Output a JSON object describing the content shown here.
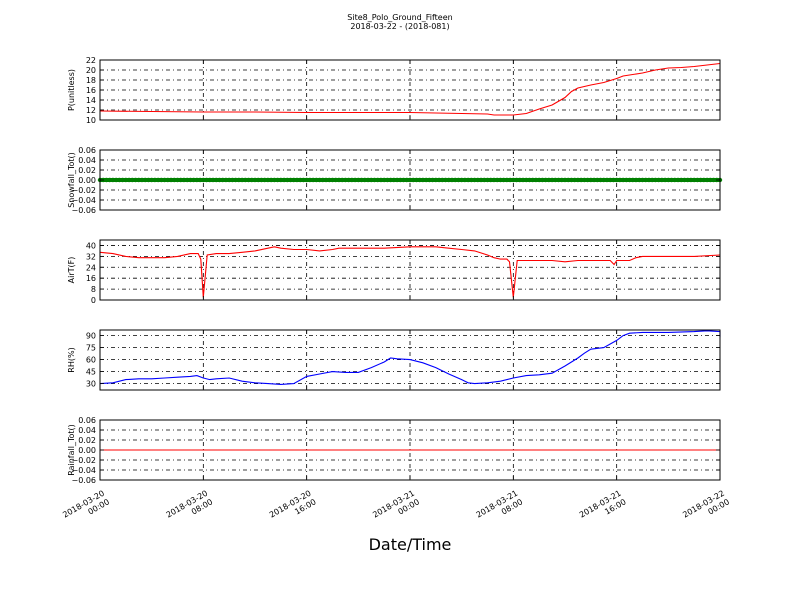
{
  "title": "Site8_Polo_Ground_Fifteen",
  "subtitle": "2018-03-22 - (2018-081)",
  "xlabel": "Date/Time",
  "x_ticks": [
    {
      "value": 0,
      "line1": "2018-03-20",
      "line2": "00:00"
    },
    {
      "value": 8,
      "line1": "2018-03-20",
      "line2": "08:00"
    },
    {
      "value": 16,
      "line1": "2018-03-20",
      "line2": "16:00"
    },
    {
      "value": 24,
      "line1": "2018-03-21",
      "line2": "00:00"
    },
    {
      "value": 32,
      "line1": "2018-03-21",
      "line2": "08:00"
    },
    {
      "value": 40,
      "line1": "2018-03-21",
      "line2": "16:00"
    },
    {
      "value": 48,
      "line1": "2018-03-22",
      "line2": "00:00"
    }
  ],
  "chart_data": [
    {
      "type": "line",
      "ylabel": "P(unitless)",
      "color": "#ff0000",
      "xlim": [
        0,
        48
      ],
      "ylim": [
        10,
        22
      ],
      "yticks": [
        10,
        12,
        14,
        16,
        18,
        20,
        22
      ],
      "tick_labels": [
        "10",
        "12",
        "14",
        "16",
        "18",
        "20",
        "22"
      ],
      "grid": true,
      "points": [
        [
          0,
          11.8
        ],
        [
          4,
          11.7
        ],
        [
          8,
          11.6
        ],
        [
          12,
          11.6
        ],
        [
          16,
          11.5
        ],
        [
          20,
          11.5
        ],
        [
          24,
          11.5
        ],
        [
          28,
          11.3
        ],
        [
          30,
          11.2
        ],
        [
          30.5,
          11.0
        ],
        [
          32,
          11.0
        ],
        [
          33,
          11.3
        ],
        [
          34,
          12.2
        ],
        [
          35,
          13.0
        ],
        [
          36,
          14.5
        ],
        [
          36.5,
          15.7
        ],
        [
          37,
          16.4
        ],
        [
          38,
          17.0
        ],
        [
          39,
          17.5
        ],
        [
          40,
          18.3
        ],
        [
          40.5,
          18.8
        ],
        [
          42,
          19.4
        ],
        [
          43,
          20.0
        ],
        [
          44,
          20.4
        ],
        [
          45,
          20.5
        ],
        [
          46,
          20.7
        ],
        [
          47,
          21.0
        ],
        [
          48,
          21.3
        ]
      ]
    },
    {
      "type": "line",
      "ylabel": "Snowfall_Tot()",
      "color": "#008000",
      "xlim": [
        0,
        48
      ],
      "ylim": [
        -0.06,
        0.06
      ],
      "yticks": [
        -0.06,
        -0.04,
        -0.02,
        0.0,
        0.02,
        0.04,
        0.06
      ],
      "tick_labels": [
        "−0.06",
        "−0.04",
        "−0.02",
        "0.00",
        "0.02",
        "0.04",
        "0.06"
      ],
      "grid": true,
      "marker": "dot",
      "points": [
        [
          0,
          0
        ],
        [
          48,
          0
        ]
      ]
    },
    {
      "type": "line",
      "ylabel": "AirT(F)",
      "color": "#ff0000",
      "xlim": [
        0,
        48
      ],
      "ylim": [
        0,
        44
      ],
      "yticks": [
        0,
        8,
        16,
        24,
        32,
        40
      ],
      "tick_labels": [
        "0",
        "8",
        "16",
        "24",
        "32",
        "40"
      ],
      "grid": true,
      "points": [
        [
          0,
          35
        ],
        [
          1,
          34
        ],
        [
          2,
          32
        ],
        [
          3,
          31
        ],
        [
          4,
          31
        ],
        [
          5,
          31
        ],
        [
          6,
          32
        ],
        [
          7,
          34
        ],
        [
          7.6,
          34
        ],
        [
          7.8,
          30
        ],
        [
          8,
          2
        ],
        [
          8.3,
          33
        ],
        [
          9,
          34
        ],
        [
          10,
          34
        ],
        [
          11,
          35
        ],
        [
          12,
          36
        ],
        [
          13,
          38
        ],
        [
          13.5,
          39
        ],
        [
          14,
          38
        ],
        [
          15,
          37
        ],
        [
          16,
          37
        ],
        [
          17,
          36
        ],
        [
          18,
          37
        ],
        [
          18.5,
          38
        ],
        [
          20,
          38
        ],
        [
          22,
          38
        ],
        [
          24,
          39
        ],
        [
          26,
          39
        ],
        [
          27,
          38
        ],
        [
          28,
          37
        ],
        [
          29,
          36
        ],
        [
          30,
          33
        ],
        [
          30.5,
          31
        ],
        [
          31,
          30
        ],
        [
          31.5,
          30
        ],
        [
          31.7,
          28
        ],
        [
          32,
          2
        ],
        [
          32.3,
          29
        ],
        [
          33,
          29
        ],
        [
          34,
          29
        ],
        [
          35,
          29
        ],
        [
          36,
          28
        ],
        [
          37,
          29
        ],
        [
          38,
          29
        ],
        [
          39,
          29
        ],
        [
          39.5,
          29
        ],
        [
          39.8,
          26
        ],
        [
          40,
          29
        ],
        [
          41,
          29
        ],
        [
          41.5,
          31
        ],
        [
          42,
          32
        ],
        [
          44,
          32
        ],
        [
          46,
          32
        ],
        [
          48,
          33
        ]
      ]
    },
    {
      "type": "line",
      "ylabel": "RH(%)",
      "color": "#0000ff",
      "xlim": [
        0,
        48
      ],
      "ylim": [
        22,
        97
      ],
      "yticks": [
        30,
        45,
        60,
        75,
        90
      ],
      "tick_labels": [
        "30",
        "45",
        "60",
        "75",
        "90"
      ],
      "grid": true,
      "points": [
        [
          0,
          30
        ],
        [
          1,
          31
        ],
        [
          2,
          35
        ],
        [
          3,
          36
        ],
        [
          4,
          36
        ],
        [
          5,
          37
        ],
        [
          6,
          38
        ],
        [
          7,
          39
        ],
        [
          7.5,
          40
        ],
        [
          8,
          37
        ],
        [
          8.5,
          35
        ],
        [
          9,
          36
        ],
        [
          10,
          37
        ],
        [
          11,
          33
        ],
        [
          12,
          31
        ],
        [
          13,
          30
        ],
        [
          14,
          29
        ],
        [
          15,
          30
        ],
        [
          16,
          39
        ],
        [
          17,
          42
        ],
        [
          18,
          45
        ],
        [
          19,
          44
        ],
        [
          20,
          44
        ],
        [
          21,
          50
        ],
        [
          22,
          57
        ],
        [
          22.5,
          62
        ],
        [
          23,
          61
        ],
        [
          24,
          60
        ],
        [
          25,
          56
        ],
        [
          26,
          50
        ],
        [
          27,
          42
        ],
        [
          28,
          35
        ],
        [
          28.5,
          31
        ],
        [
          29,
          30
        ],
        [
          30,
          31
        ],
        [
          31,
          33
        ],
        [
          32,
          37
        ],
        [
          33,
          40
        ],
        [
          34,
          41
        ],
        [
          35,
          43
        ],
        [
          36,
          52
        ],
        [
          37,
          62
        ],
        [
          37.5,
          68
        ],
        [
          38,
          73
        ],
        [
          39,
          75
        ],
        [
          40,
          84
        ],
        [
          40.5,
          90
        ],
        [
          41,
          93
        ],
        [
          42,
          94
        ],
        [
          44,
          94
        ],
        [
          46,
          95
        ],
        [
          47,
          96
        ],
        [
          48,
          95
        ],
        [
          48,
          88
        ]
      ]
    },
    {
      "type": "line",
      "ylabel": "Rainfall_Tot()",
      "color": "#ff0000",
      "xlim": [
        0,
        48
      ],
      "ylim": [
        -0.06,
        0.06
      ],
      "yticks": [
        -0.06,
        -0.04,
        -0.02,
        0.0,
        0.02,
        0.04,
        0.06
      ],
      "tick_labels": [
        "−0.06",
        "−0.04",
        "−0.02",
        "0.00",
        "0.02",
        "0.04",
        "0.06"
      ],
      "grid": true,
      "points": [
        [
          0,
          0
        ],
        [
          48,
          0
        ]
      ]
    }
  ]
}
